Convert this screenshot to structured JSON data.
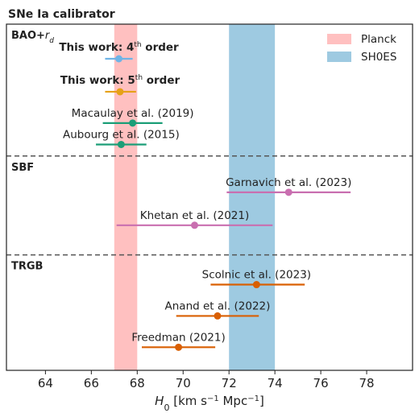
{
  "figure": {
    "title": "SNe Ia calibrator"
  },
  "chart_data": {
    "type": "errorbar",
    "title": "SNe Ia calibrator",
    "xlabel_html": "H<tspan baseline-shift=\"sub\" font-size=\"11\">0</tspan> [km s<tspan baseline-shift=\"super\" font-size=\"10\">−1</tspan> Mpc<tspan baseline-shift=\"super\" font-size=\"10\">−1</tspan>]",
    "xlabel": "H0 [km s−1 Mpc−1]",
    "xlim": [
      62.3,
      80.0
    ],
    "xticks": [
      64,
      66,
      68,
      70,
      72,
      74,
      76,
      78
    ],
    "ylim": [
      0,
      10.5
    ],
    "grid": false,
    "legend_position": "top-right",
    "bands": [
      {
        "name": "Planck",
        "range": [
          67.0,
          68.0
        ],
        "color": "#ffc0c0"
      },
      {
        "name": "SH0ES",
        "range": [
          72.0,
          74.0
        ],
        "color": "#9ecae1"
      }
    ],
    "groups": [
      {
        "label": "BAO+r_d",
        "label_main": "BAO+",
        "label_sub": "r",
        "label_subsub": "d",
        "y_top": 10.5,
        "y_bottom": 6.5
      },
      {
        "label": "SBF",
        "y_top": 6.5,
        "y_bottom": 3.5
      },
      {
        "label": "TRGB",
        "y_top": 3.5,
        "y_bottom": 0
      }
    ],
    "points": [
      {
        "label": "This work: 4th order",
        "label_main": "This work: 4",
        "label_sup": "th",
        "label_tail": " order",
        "bold": true,
        "x": 67.2,
        "xmin": 66.6,
        "xmax": 67.8,
        "y": 9.45,
        "color": "#6fb4e6"
      },
      {
        "label": "This work: 5th order",
        "label_main": "This work: 5",
        "label_sup": "th",
        "label_tail": " order",
        "bold": true,
        "x": 67.25,
        "xmin": 66.6,
        "xmax": 67.95,
        "y": 8.45,
        "color": "#e6a117"
      },
      {
        "label": "Macaulay et al. (2019)",
        "bold": false,
        "x": 67.8,
        "xmin": 66.5,
        "xmax": 69.1,
        "y": 7.5,
        "color": "#1b9e77"
      },
      {
        "label": "Aubourg et al. (2015)",
        "bold": false,
        "x": 67.3,
        "xmin": 66.2,
        "xmax": 68.4,
        "y": 6.85,
        "color": "#1b9e77"
      },
      {
        "label": "Garnavich et al. (2023)",
        "bold": false,
        "x": 74.6,
        "xmin": 71.9,
        "xmax": 77.3,
        "y": 5.4,
        "color": "#c96fb0"
      },
      {
        "label": "Khetan et al. (2021)",
        "bold": false,
        "x": 70.5,
        "xmin": 67.1,
        "xmax": 73.9,
        "y": 4.4,
        "color": "#c96fb0"
      },
      {
        "label": "Scolnic et al. (2023)",
        "bold": false,
        "x": 73.2,
        "xmin": 71.2,
        "xmax": 75.3,
        "y": 2.6,
        "color": "#d95f02"
      },
      {
        "label": "Anand et al. (2022)",
        "bold": false,
        "x": 71.5,
        "xmin": 69.7,
        "xmax": 73.3,
        "y": 1.65,
        "color": "#d95f02"
      },
      {
        "label": "Freedman (2021)",
        "bold": false,
        "x": 69.8,
        "xmin": 68.2,
        "xmax": 71.4,
        "y": 0.7,
        "color": "#d95f02"
      }
    ],
    "label_offsets": [
      20,
      20,
      18,
      18,
      18,
      18,
      18,
      18,
      18
    ]
  }
}
